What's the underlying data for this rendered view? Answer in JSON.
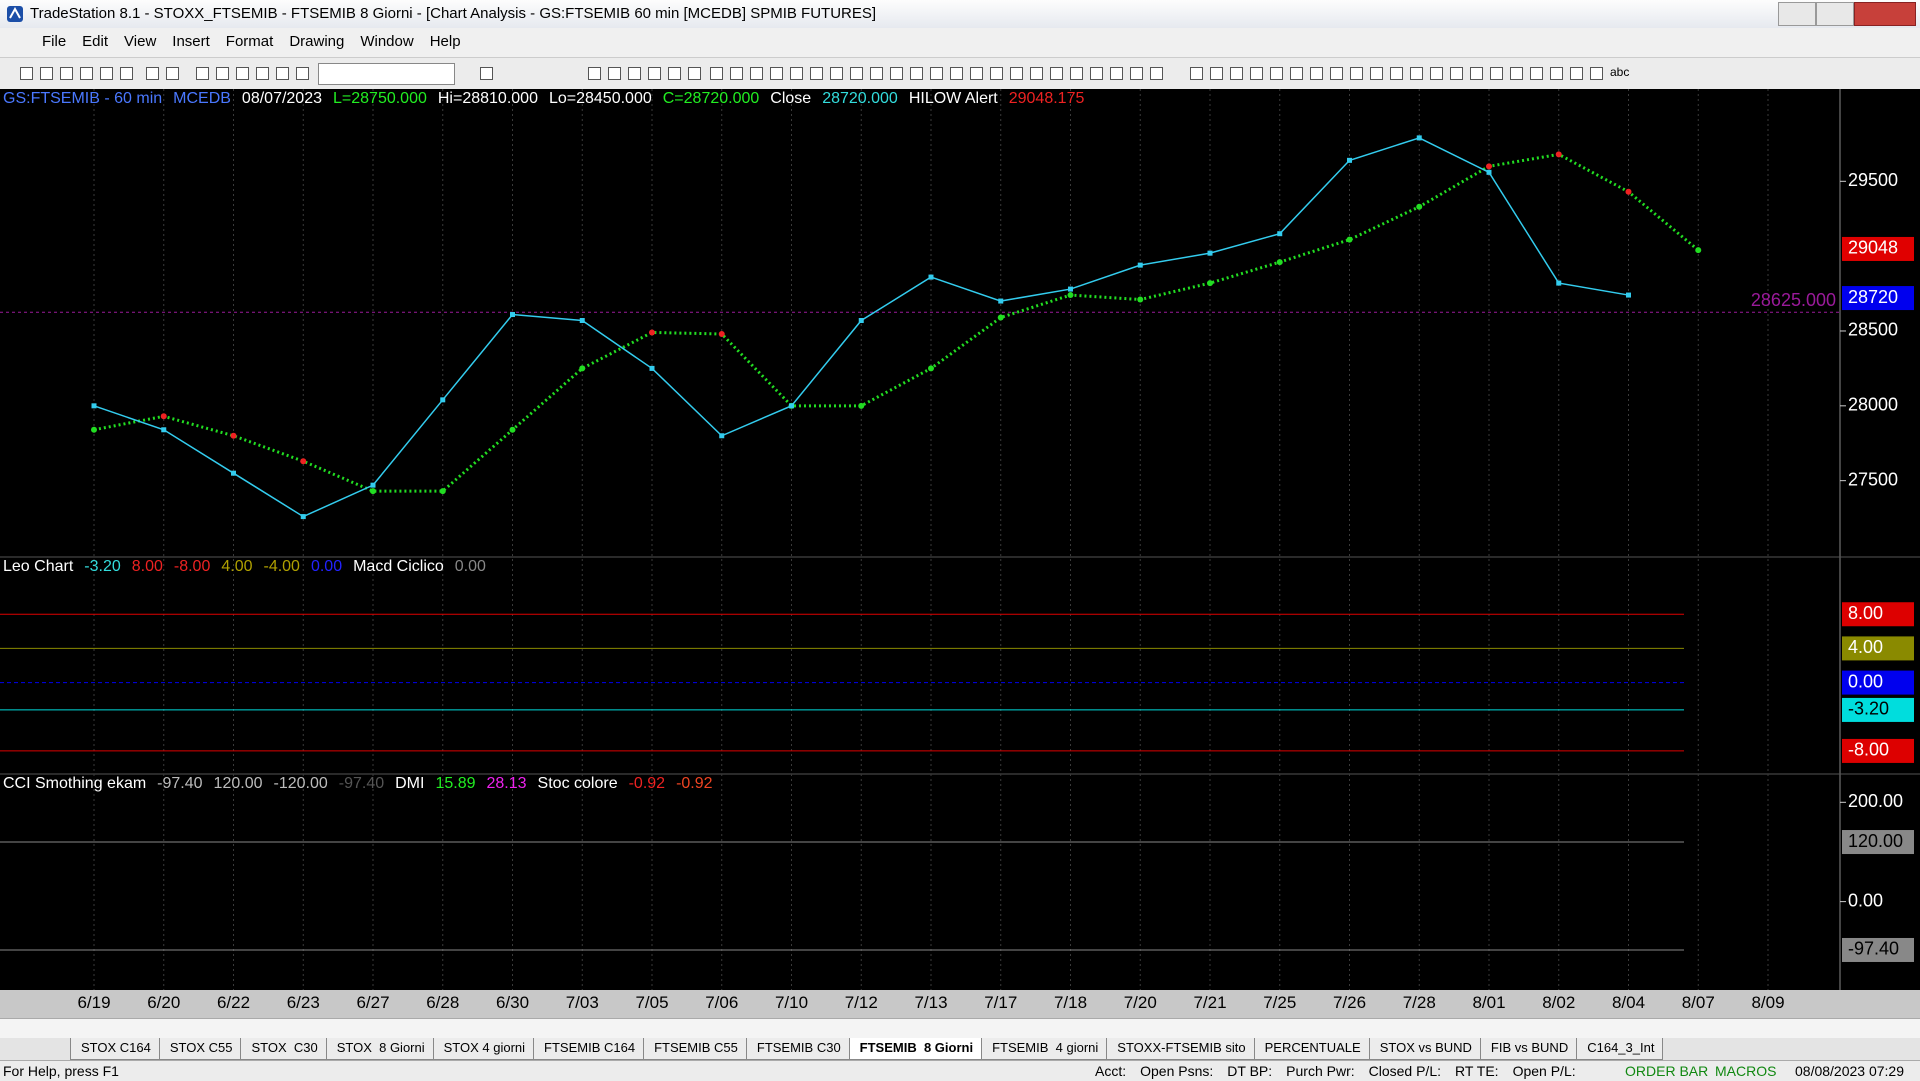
{
  "window": {
    "title": "TradeStation 8.1 - STOXX_FTSEMIB - FTSEMIB  8 Giorni - [Chart Analysis - GS:FTSEMIB  60 min  [MCEDB] SPMIB FUTURES]",
    "menu": [
      "File",
      "Edit",
      "View",
      "Insert",
      "Format",
      "Drawing",
      "Window",
      "Help"
    ],
    "toolbar_text": "abc",
    "tabs": [
      "STOX C164",
      "STOX C55",
      "STOX  C30",
      "STOX  8 Giorni",
      "STOX 4 giorni",
      "FTSEMIB C164",
      "FTSEMIB C55",
      "FTSEMIB C30",
      "FTSEMIB  8 Giorni",
      "FTSEMIB  4 giorni",
      "STOXX-FTSEMIB sito",
      "PERCENTUALE",
      "STOX vs BUND",
      "FIB vs BUND",
      "C164_3_Int"
    ],
    "status": {
      "help": "For Help, press F1",
      "fields": [
        "Acct:",
        "Open Psns:",
        "DT BP:",
        "Purch Pwr:",
        "Closed P/L:",
        "RT TE:",
        "Open P/L:"
      ],
      "order_bar": "ORDER BAR",
      "macros": "MACROS",
      "clock": "08/08/2023 07:29"
    }
  },
  "chart_data": {
    "type": "line",
    "header": [
      "GS:FTSEMIB - 60 min",
      "MCEDB",
      "08/07/2023",
      "L=28750.000",
      "Hi=28810.000",
      "Lo=28450.000",
      "C=28720.000",
      "Close",
      "28720.000",
      "HILOW Alert",
      "29048.175"
    ],
    "categories": [
      "6/19",
      "6/20",
      "6/22",
      "6/23",
      "6/27",
      "6/28",
      "6/30",
      "7/03",
      "7/05",
      "7/06",
      "7/10",
      "7/12",
      "7/13",
      "7/17",
      "7/18",
      "7/20",
      "7/21",
      "7/25",
      "7/26",
      "7/28",
      "8/01",
      "8/02",
      "8/04",
      "8/07",
      "8/09"
    ],
    "series": [
      {
        "name": "Close",
        "color": "#33ccee",
        "values": [
          28000,
          27840,
          27550,
          27260,
          27470,
          28040,
          28610,
          28570,
          28250,
          27800,
          28000,
          28570,
          28860,
          28700,
          28780,
          28940,
          29020,
          29150,
          29640,
          29790,
          29560,
          28820,
          28740,
          null,
          null
        ]
      },
      {
        "name": "HILOW Alert",
        "color": "#22dd22",
        "alt_color": "#ee2222",
        "values": [
          27840,
          27930,
          27800,
          27630,
          27430,
          27430,
          27840,
          28250,
          28490,
          28480,
          28000,
          28000,
          28250,
          28590,
          28740,
          28710,
          28820,
          28960,
          29110,
          29330,
          29600,
          29680,
          29430,
          29040,
          null
        ]
      }
    ],
    "ylim": [
      26990,
      30110
    ],
    "yticks": [
      27500,
      28000,
      28500,
      29500
    ],
    "price_tags": [
      {
        "value": 29048,
        "label": "29048",
        "color": "#e00000"
      },
      {
        "value": 28720,
        "label": "28720",
        "color": "#0000ee"
      }
    ],
    "reference_line": {
      "value": 28625,
      "label": "28625.000",
      "color": "#9a1a9a"
    },
    "grid": true,
    "indicator_1": {
      "header": [
        "Leo Chart",
        "-3.20",
        "8.00",
        "-8.00",
        "4.00",
        "-4.00",
        "0.00",
        "Macd Ciclico",
        "0.00"
      ],
      "ylim": [
        -10.7,
        14.7
      ],
      "levels": [
        {
          "value": 8,
          "label": "8.00",
          "color": "#dd0000"
        },
        {
          "value": 4,
          "label": "4.00",
          "color": "#8a8a00"
        },
        {
          "value": 0,
          "label": "0.00",
          "color": "#0000ee"
        },
        {
          "value": -3.2,
          "label": "-3.20",
          "color": "#00dddd"
        },
        {
          "value": -8,
          "label": "-8.00",
          "color": "#dd0000"
        }
      ]
    },
    "indicator_2": {
      "header": [
        "CCI Smothing ekam",
        "-97.40",
        "120.00",
        "-120.00",
        "-97.40",
        "DMI",
        "15.89",
        "28.13",
        "Stoc colore",
        "-0.92",
        "-0.92"
      ],
      "ylim": [
        -178,
        257
      ],
      "levels": [
        {
          "value": 200,
          "label": "200.00",
          "color": "#000000"
        },
        {
          "value": 120,
          "label": "120.00",
          "color": "#888888"
        },
        {
          "value": 0,
          "label": "0.00",
          "color": "#000000"
        },
        {
          "value": -97.4,
          "label": "-97.40",
          "color": "#888888"
        }
      ]
    }
  }
}
